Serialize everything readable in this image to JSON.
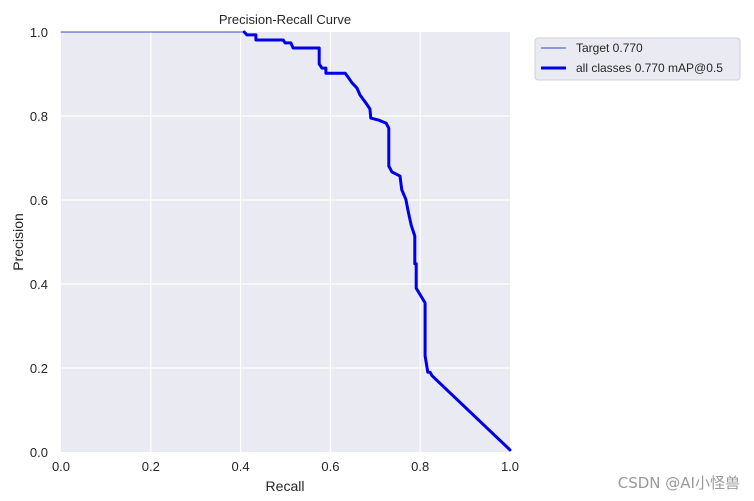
{
  "chart_data": {
    "type": "line",
    "title": "Precision-Recall Curve",
    "xlabel": "Recall",
    "ylabel": "Precision",
    "xlim": [
      0.0,
      1.0
    ],
    "ylim": [
      0.0,
      1.0
    ],
    "xticks": [
      "0.0",
      "0.2",
      "0.4",
      "0.6",
      "0.8",
      "1.0"
    ],
    "yticks": [
      "0.0",
      "0.2",
      "0.4",
      "0.6",
      "0.8",
      "1.0"
    ],
    "grid": true,
    "legend_position": "outside upper right",
    "series": [
      {
        "name": "Target 0.770",
        "color": "#3b4bd6",
        "linewidth": 1,
        "x": [
          0.0,
          0.408,
          0.414,
          0.434,
          0.434,
          0.495,
          0.499,
          0.512,
          0.517,
          0.575,
          0.575,
          0.581,
          0.59,
          0.59,
          0.633,
          0.639,
          0.648,
          0.659,
          0.666,
          0.679,
          0.688,
          0.69,
          0.708,
          0.724,
          0.73,
          0.73,
          0.737,
          0.755,
          0.759,
          0.768,
          0.773,
          0.78,
          0.788,
          0.788,
          0.791,
          0.791,
          0.811,
          0.811,
          0.817,
          0.822,
          0.826,
          0.826,
          0.826,
          1.0
        ],
        "y": [
          1.0,
          1.0,
          0.993,
          0.993,
          0.981,
          0.981,
          0.974,
          0.974,
          0.962,
          0.962,
          0.924,
          0.914,
          0.914,
          0.902,
          0.902,
          0.893,
          0.879,
          0.867,
          0.85,
          0.831,
          0.817,
          0.795,
          0.79,
          0.783,
          0.771,
          0.681,
          0.667,
          0.657,
          0.624,
          0.602,
          0.574,
          0.54,
          0.514,
          0.448,
          0.448,
          0.39,
          0.355,
          0.229,
          0.19,
          0.19,
          0.182,
          0.182,
          0.182,
          0.005
        ]
      },
      {
        "name": "all classes 0.770 mAP@0.5",
        "color": "#0000e6",
        "linewidth": 3,
        "x": [
          0.408,
          0.414,
          0.434,
          0.434,
          0.495,
          0.499,
          0.512,
          0.517,
          0.575,
          0.575,
          0.581,
          0.59,
          0.59,
          0.633,
          0.639,
          0.648,
          0.659,
          0.666,
          0.679,
          0.688,
          0.69,
          0.708,
          0.724,
          0.73,
          0.73,
          0.737,
          0.755,
          0.759,
          0.768,
          0.773,
          0.78,
          0.788,
          0.788,
          0.791,
          0.791,
          0.811,
          0.811,
          0.817,
          0.822,
          0.826,
          1.0
        ],
        "y": [
          1.0,
          0.993,
          0.993,
          0.981,
          0.981,
          0.974,
          0.974,
          0.962,
          0.962,
          0.924,
          0.914,
          0.914,
          0.902,
          0.902,
          0.893,
          0.879,
          0.867,
          0.85,
          0.831,
          0.817,
          0.795,
          0.79,
          0.783,
          0.771,
          0.681,
          0.667,
          0.657,
          0.624,
          0.602,
          0.574,
          0.54,
          0.514,
          0.448,
          0.448,
          0.39,
          0.355,
          0.229,
          0.19,
          0.19,
          0.182,
          0.005
        ]
      }
    ]
  },
  "legend": {
    "items": [
      {
        "label": "Target 0.770"
      },
      {
        "label": "all classes 0.770 mAP@0.5"
      }
    ]
  },
  "watermark": "CSDN @AI小怪兽",
  "colors": {
    "plot_background": "#eaeaf2",
    "grid": "#ffffff",
    "curve": "#0000e6",
    "target_line": "#3b4bd6"
  }
}
